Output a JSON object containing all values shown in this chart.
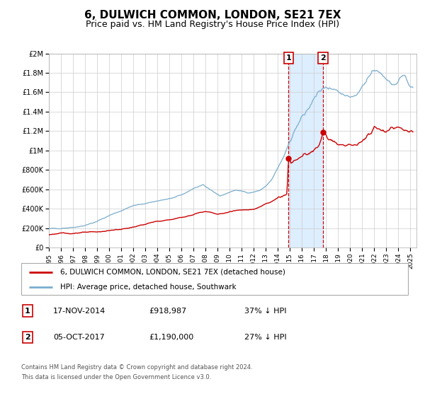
{
  "title": "6, DULWICH COMMON, LONDON, SE21 7EX",
  "subtitle": "Price paid vs. HM Land Registry's House Price Index (HPI)",
  "ylim": [
    0,
    2000000
  ],
  "xlim_start": 1995.0,
  "xlim_end": 2025.5,
  "yticks": [
    0,
    200000,
    400000,
    600000,
    800000,
    1000000,
    1200000,
    1400000,
    1600000,
    1800000,
    2000000
  ],
  "ytick_labels": [
    "£0",
    "£200K",
    "£400K",
    "£600K",
    "£800K",
    "£1M",
    "£1.2M",
    "£1.4M",
    "£1.6M",
    "£1.8M",
    "£2M"
  ],
  "xticks": [
    1995,
    1996,
    1997,
    1998,
    1999,
    2000,
    2001,
    2002,
    2003,
    2004,
    2005,
    2006,
    2007,
    2008,
    2009,
    2010,
    2011,
    2012,
    2013,
    2014,
    2015,
    2016,
    2017,
    2018,
    2019,
    2020,
    2021,
    2022,
    2023,
    2024,
    2025
  ],
  "sale1_date": 2014.88,
  "sale1_price": 918987,
  "sale1_label": "1",
  "sale2_date": 2017.75,
  "sale2_price": 1190000,
  "sale2_label": "2",
  "sale1_text": "17-NOV-2014",
  "sale1_amount": "£918,987",
  "sale1_hpi": "37% ↓ HPI",
  "sale2_text": "05-OCT-2017",
  "sale2_amount": "£1,190,000",
  "sale2_hpi": "27% ↓ HPI",
  "legend_line1": "6, DULWICH COMMON, LONDON, SE21 7EX (detached house)",
  "legend_line2": "HPI: Average price, detached house, Southwark",
  "footer1": "Contains HM Land Registry data © Crown copyright and database right 2024.",
  "footer2": "This data is licensed under the Open Government Licence v3.0.",
  "line_color_red": "#cc0000",
  "line_color_blue": "#7aadcc",
  "shade_color": "#ddeeff",
  "grid_color": "#cccccc",
  "bg_color": "#ffffff",
  "title_fontsize": 11,
  "subtitle_fontsize": 9
}
